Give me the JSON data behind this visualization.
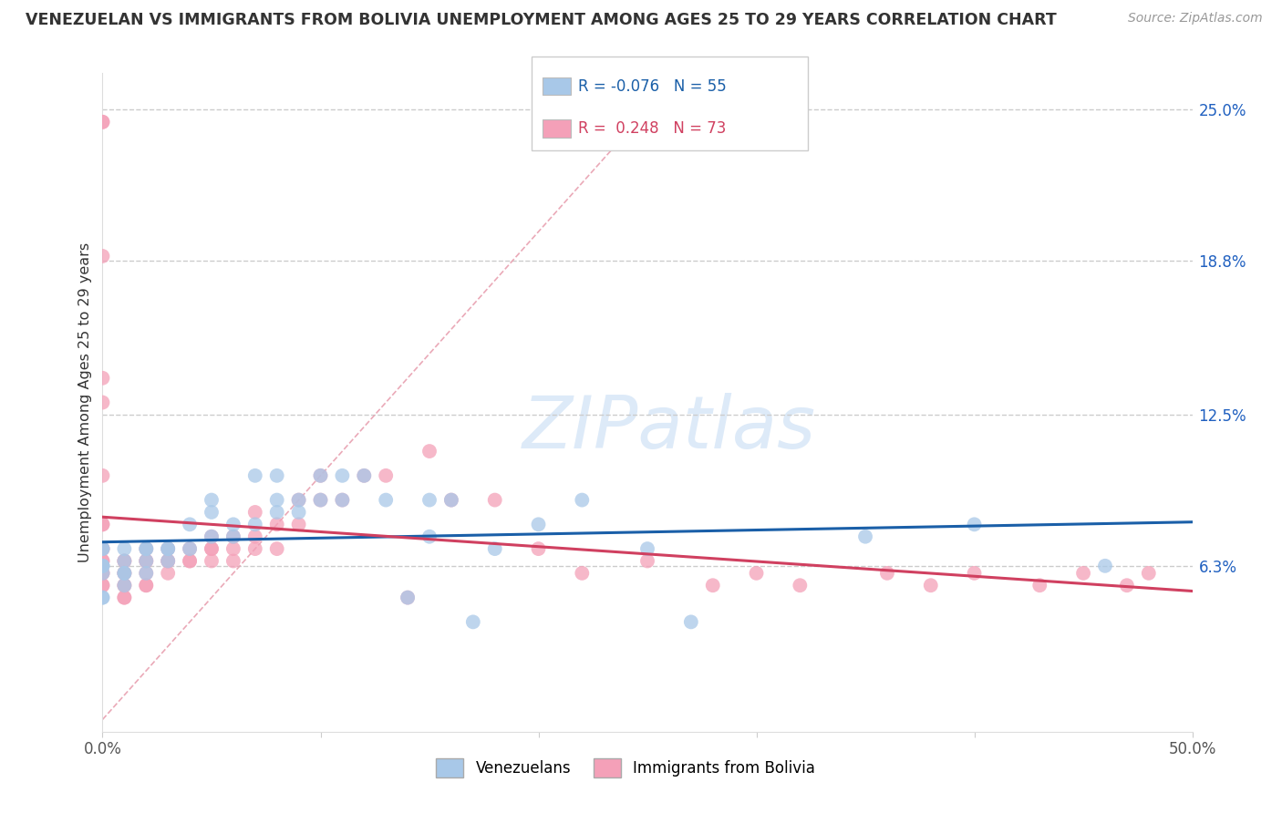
{
  "title": "VENEZUELAN VS IMMIGRANTS FROM BOLIVIA UNEMPLOYMENT AMONG AGES 25 TO 29 YEARS CORRELATION CHART",
  "source": "Source: ZipAtlas.com",
  "ylabel": "Unemployment Among Ages 25 to 29 years",
  "xlim": [
    0.0,
    0.5
  ],
  "ylim": [
    -0.005,
    0.265
  ],
  "ytick_labels_right": [
    "6.3%",
    "12.5%",
    "18.8%",
    "25.0%"
  ],
  "ytick_vals_right": [
    0.063,
    0.125,
    0.188,
    0.25
  ],
  "gridline_y": [
    0.063,
    0.125,
    0.188,
    0.25
  ],
  "blue_color": "#a8c8e8",
  "pink_color": "#f4a0b8",
  "blue_line_color": "#1a5fa8",
  "pink_line_color": "#d04060",
  "diag_line_color": "#e8a0b0",
  "venezuelan_x": [
    0.0,
    0.0,
    0.0,
    0.0,
    0.0,
    0.0,
    0.0,
    0.0,
    0.01,
    0.01,
    0.01,
    0.01,
    0.01,
    0.02,
    0.02,
    0.02,
    0.02,
    0.03,
    0.03,
    0.03,
    0.04,
    0.04,
    0.05,
    0.05,
    0.05,
    0.06,
    0.06,
    0.07,
    0.07,
    0.08,
    0.08,
    0.08,
    0.09,
    0.09,
    0.1,
    0.1,
    0.11,
    0.11,
    0.12,
    0.13,
    0.14,
    0.15,
    0.15,
    0.16,
    0.17,
    0.18,
    0.2,
    0.22,
    0.25,
    0.27,
    0.35,
    0.4,
    0.46
  ],
  "venezuelan_y": [
    0.063,
    0.063,
    0.063,
    0.07,
    0.07,
    0.05,
    0.05,
    0.06,
    0.07,
    0.065,
    0.06,
    0.055,
    0.06,
    0.07,
    0.065,
    0.07,
    0.06,
    0.065,
    0.07,
    0.07,
    0.08,
    0.07,
    0.075,
    0.085,
    0.09,
    0.075,
    0.08,
    0.08,
    0.1,
    0.085,
    0.09,
    0.1,
    0.085,
    0.09,
    0.09,
    0.1,
    0.09,
    0.1,
    0.1,
    0.09,
    0.05,
    0.075,
    0.09,
    0.09,
    0.04,
    0.07,
    0.08,
    0.09,
    0.07,
    0.04,
    0.075,
    0.08,
    0.063
  ],
  "bolivia_x": [
    0.0,
    0.0,
    0.0,
    0.0,
    0.0,
    0.0,
    0.0,
    0.0,
    0.0,
    0.0,
    0.0,
    0.0,
    0.0,
    0.0,
    0.0,
    0.0,
    0.01,
    0.01,
    0.01,
    0.01,
    0.01,
    0.01,
    0.01,
    0.01,
    0.02,
    0.02,
    0.02,
    0.02,
    0.02,
    0.02,
    0.03,
    0.03,
    0.03,
    0.03,
    0.04,
    0.04,
    0.04,
    0.05,
    0.05,
    0.05,
    0.05,
    0.06,
    0.06,
    0.06,
    0.07,
    0.07,
    0.07,
    0.08,
    0.08,
    0.09,
    0.09,
    0.1,
    0.1,
    0.11,
    0.12,
    0.13,
    0.14,
    0.15,
    0.16,
    0.18,
    0.2,
    0.22,
    0.25,
    0.28,
    0.3,
    0.32,
    0.36,
    0.38,
    0.4,
    0.43,
    0.45,
    0.47,
    0.48
  ],
  "bolivia_y": [
    0.245,
    0.245,
    0.19,
    0.14,
    0.13,
    0.1,
    0.08,
    0.08,
    0.07,
    0.07,
    0.065,
    0.065,
    0.06,
    0.06,
    0.055,
    0.055,
    0.065,
    0.065,
    0.06,
    0.06,
    0.055,
    0.055,
    0.05,
    0.05,
    0.055,
    0.055,
    0.06,
    0.065,
    0.065,
    0.07,
    0.06,
    0.065,
    0.065,
    0.07,
    0.065,
    0.065,
    0.07,
    0.065,
    0.07,
    0.07,
    0.075,
    0.065,
    0.07,
    0.075,
    0.07,
    0.075,
    0.085,
    0.07,
    0.08,
    0.08,
    0.09,
    0.09,
    0.1,
    0.09,
    0.1,
    0.1,
    0.05,
    0.11,
    0.09,
    0.09,
    0.07,
    0.06,
    0.065,
    0.055,
    0.06,
    0.055,
    0.06,
    0.055,
    0.06,
    0.055,
    0.06,
    0.055,
    0.06
  ]
}
